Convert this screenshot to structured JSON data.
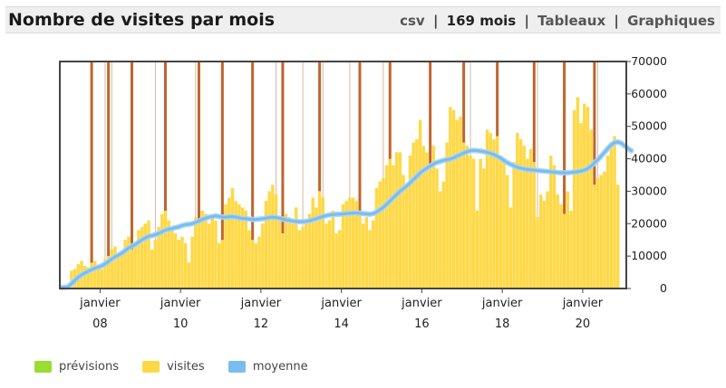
{
  "header": {
    "title": "Nombre de visites par mois",
    "links": {
      "csv": "csv",
      "count": "169 mois",
      "tables": "Tableaux",
      "charts": "Graphiques",
      "sep": "|"
    }
  },
  "legend": [
    {
      "label": "prévisions",
      "color": "#99dd33"
    },
    {
      "label": "visites",
      "color": "#ffd845"
    },
    {
      "label": "moyenne",
      "color": "#7bbcee"
    }
  ],
  "chart_data": {
    "type": "bar",
    "title": "Nombre de visites par mois",
    "ylim": [
      0,
      70000
    ],
    "y_ticks": [
      0,
      10000,
      20000,
      30000,
      40000,
      50000,
      60000,
      70000
    ],
    "y_tick_labels": [
      "0",
      "10000",
      "20000",
      "30000",
      "40000",
      "50000",
      "60000",
      "70000"
    ],
    "x_tick_labels": [
      {
        "month_index": 12,
        "month": "janvier",
        "year": "08"
      },
      {
        "month_index": 36,
        "month": "janvier",
        "year": "10"
      },
      {
        "month_index": 60,
        "month": "janvier",
        "year": "12"
      },
      {
        "month_index": 84,
        "month": "janvier",
        "year": "14"
      },
      {
        "month_index": 108,
        "month": "janvier",
        "year": "16"
      },
      {
        "month_index": 132,
        "month": "janvier",
        "year": "18"
      },
      {
        "month_index": 156,
        "month": "janvier",
        "year": "20"
      }
    ],
    "month_count": 169,
    "series": [
      {
        "name": "visites",
        "color": "#ffd845",
        "values": [
          300,
          600,
          1200,
          5500,
          6000,
          7500,
          8500,
          7000,
          6500,
          8000,
          8500,
          6500,
          6000,
          9000,
          10000,
          12000,
          13000,
          10000,
          11000,
          15000,
          16000,
          12000,
          14000,
          18000,
          19000,
          20000,
          21000,
          12000,
          15000,
          19000,
          23000,
          24000,
          21000,
          18000,
          17000,
          15000,
          16000,
          14000,
          8000,
          16000,
          22000,
          21000,
          24000,
          23000,
          20000,
          22000,
          21000,
          14000,
          15000,
          26000,
          28000,
          31000,
          27000,
          26000,
          25000,
          24000,
          18000,
          15000,
          14000,
          16000,
          20000,
          27000,
          30000,
          32000,
          29000,
          21000,
          17000,
          23000,
          22000,
          20000,
          25000,
          18000,
          19000,
          20000,
          23000,
          28000,
          25000,
          30000,
          28000,
          20000,
          21000,
          24000,
          17000,
          18000,
          26000,
          27000,
          28000,
          28000,
          27000,
          24000,
          20000,
          22000,
          18000,
          21000,
          31000,
          33000,
          34000,
          38000,
          40000,
          38000,
          42000,
          42000,
          35000,
          32000,
          41000,
          45000,
          46000,
          52000,
          44000,
          42000,
          38000,
          44000,
          37000,
          30000,
          33000,
          45000,
          56000,
          55000,
          52000,
          53000,
          45000,
          44000,
          41000,
          40000,
          24000,
          40000,
          37000,
          49000,
          48000,
          46000,
          47000,
          41000,
          40000,
          35000,
          25000,
          39000,
          48000,
          46000,
          44000,
          40000,
          43000,
          39000,
          22000,
          29000,
          27000,
          30000,
          41000,
          38000,
          29000,
          26000,
          23000,
          30000,
          24000,
          55000,
          59000,
          51000,
          57000,
          56000,
          49000,
          32000,
          34000,
          35000,
          36000,
          41000,
          45000,
          47000,
          32000
        ]
      },
      {
        "name": "moyenne",
        "color": "#7bbcee",
        "values": [
          300,
          400,
          600,
          1500,
          2500,
          3500,
          4200,
          4800,
          5300,
          5800,
          6300,
          6600,
          7000,
          7600,
          8300,
          9100,
          9800,
          10300,
          10900,
          11700,
          12500,
          13000,
          13600,
          14300,
          15000,
          15600,
          16100,
          16300,
          16600,
          17000,
          17500,
          18000,
          18300,
          18500,
          18800,
          19000,
          19400,
          19700,
          19800,
          20000,
          20400,
          20800,
          21300,
          21700,
          22000,
          22200,
          22400,
          22200,
          22000,
          22000,
          22100,
          22200,
          22000,
          21800,
          21600,
          21500,
          21400,
          21300,
          21300,
          21400,
          21500,
          21700,
          21900,
          22000,
          21900,
          21700,
          21400,
          21200,
          21000,
          20800,
          20700,
          20600,
          20600,
          20700,
          20900,
          21200,
          21500,
          21900,
          22200,
          22500,
          22700,
          22800,
          22900,
          22900,
          23000,
          23100,
          23200,
          23300,
          23300,
          23200,
          23100,
          23000,
          22900,
          23100,
          23600,
          24300,
          25000,
          26000,
          27000,
          28000,
          29000,
          30000,
          30800,
          31600,
          32600,
          33600,
          34600,
          35600,
          36400,
          37100,
          37700,
          38400,
          38900,
          39200,
          39500,
          39700,
          39900,
          40300,
          40800,
          41300,
          41800,
          42200,
          42500,
          42600,
          42500,
          42400,
          42200,
          42000,
          41700,
          41300,
          40800,
          40200,
          39500,
          38800,
          38300,
          37800,
          37400,
          37100,
          36900,
          36700,
          36600,
          36500,
          36400,
          36300,
          36200,
          36100,
          36000,
          35900,
          35800,
          35700,
          35700,
          35700,
          35800,
          35900,
          36000,
          36200,
          36500,
          37000,
          37800,
          38700,
          39700,
          40800,
          42000,
          43200,
          44300,
          45000,
          45200,
          44800,
          44000,
          43200,
          42500
        ]
      }
    ],
    "markers": {
      "name": "highlighted months",
      "dark": [
        9,
        14,
        21,
        31,
        41,
        48,
        57,
        66,
        77,
        89,
        98,
        110,
        120,
        130,
        141,
        150,
        159
      ],
      "light": [
        13,
        15,
        28,
        40,
        64,
        72,
        78,
        86,
        96,
        122,
        142,
        160
      ]
    },
    "grid": false,
    "legend_position": "bottom-left"
  }
}
